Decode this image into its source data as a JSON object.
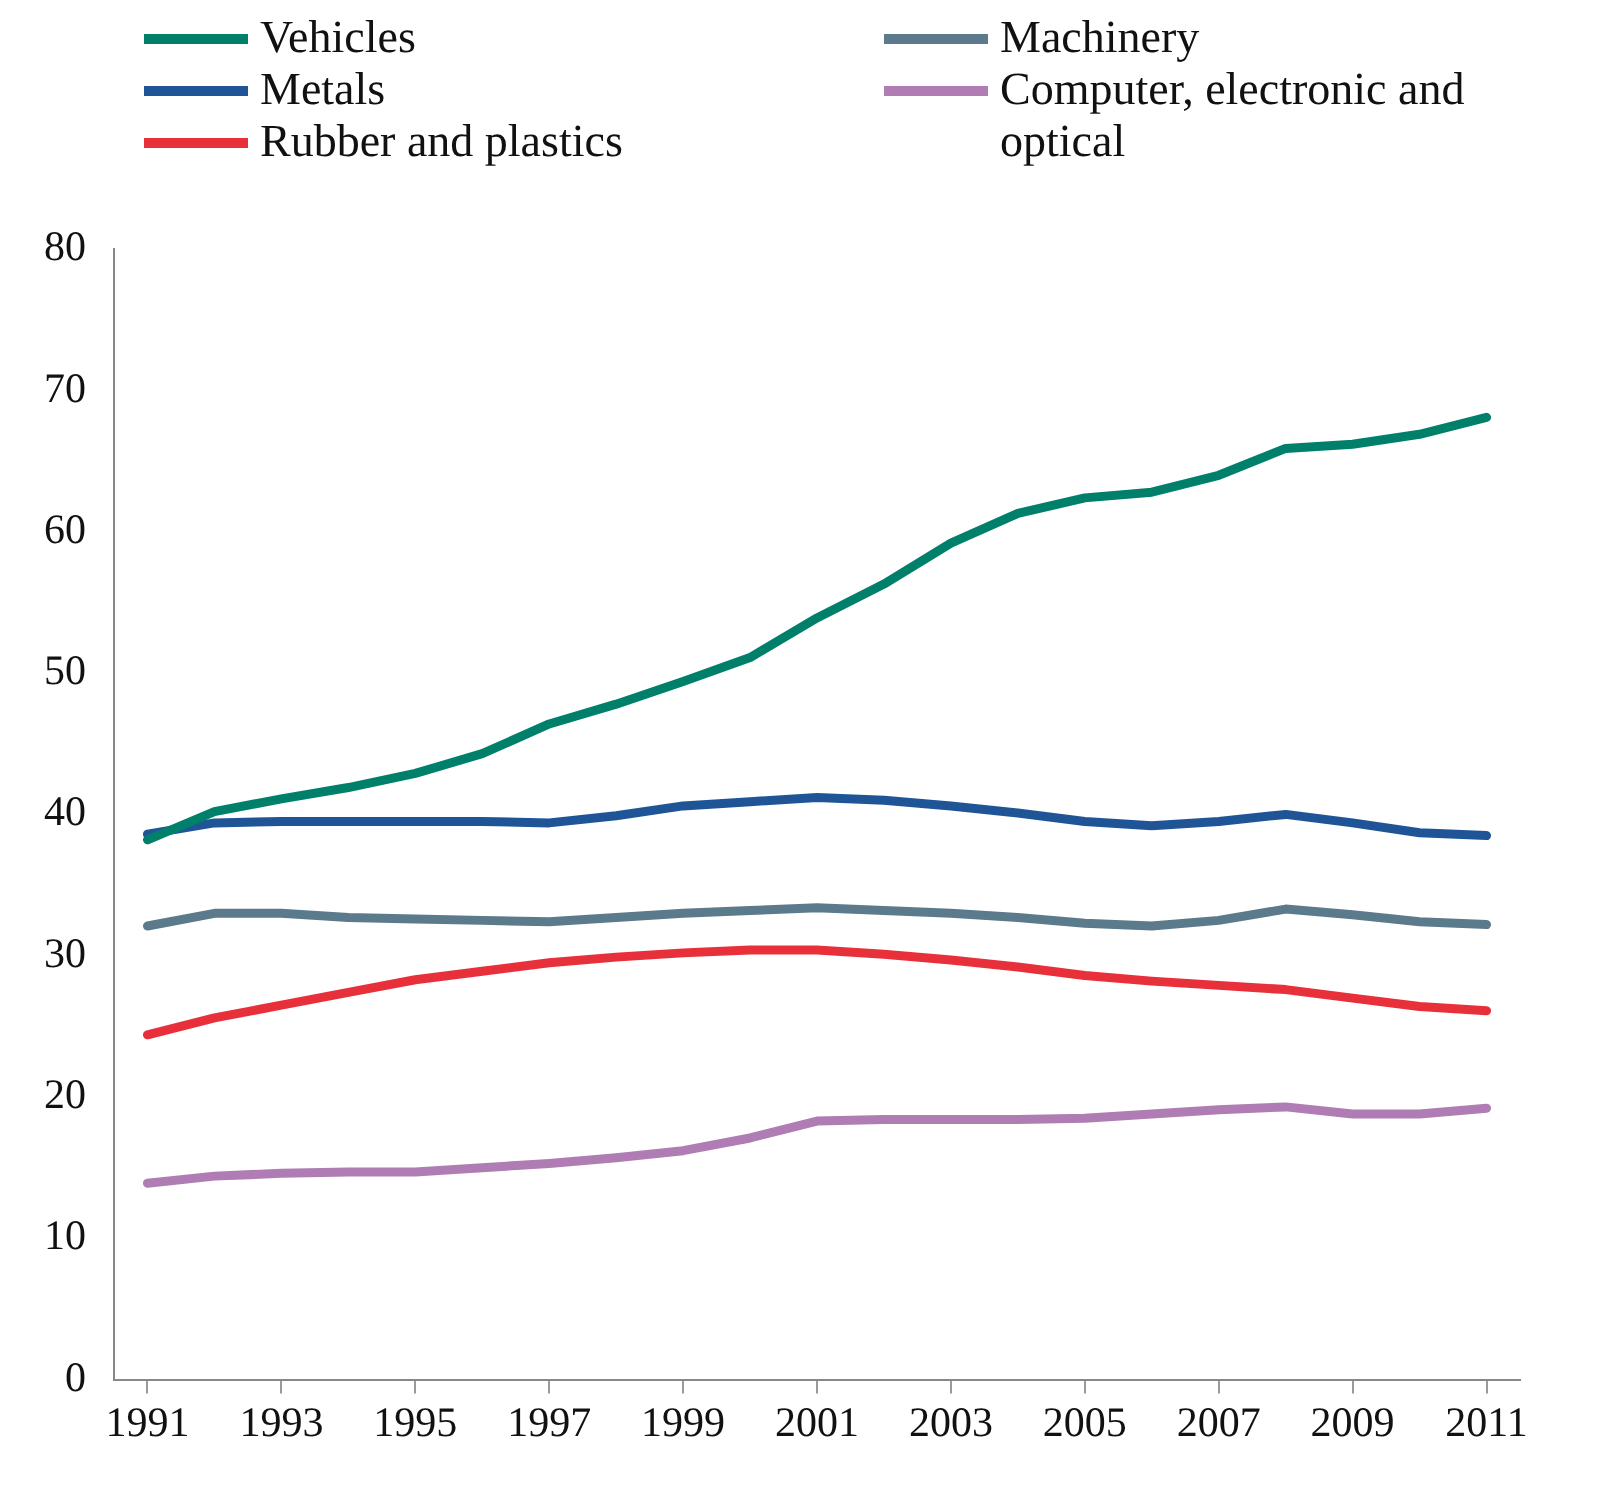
{
  "chart_data": {
    "type": "line",
    "x": [
      1991,
      1992,
      1993,
      1994,
      1995,
      1996,
      1997,
      1998,
      1999,
      2000,
      2001,
      2002,
      2003,
      2004,
      2005,
      2006,
      2007,
      2008,
      2009,
      2010,
      2011
    ],
    "series": [
      {
        "name": "Vehicles",
        "color": "#00806a",
        "values": [
          38.2,
          40.2,
          41.1,
          41.9,
          42.9,
          44.3,
          46.4,
          47.8,
          49.4,
          51.1,
          53.9,
          56.3,
          59.2,
          61.3,
          62.4,
          62.8,
          64.0,
          65.9,
          66.2,
          66.9,
          68.1
        ]
      },
      {
        "name": "Machinery",
        "color": "#5b7a8c",
        "values": [
          32.1,
          33.0,
          33.0,
          32.7,
          32.6,
          32.5,
          32.4,
          32.7,
          33.0,
          33.2,
          33.4,
          33.2,
          33.0,
          32.7,
          32.3,
          32.1,
          32.5,
          33.3,
          32.9,
          32.4,
          32.2
        ]
      },
      {
        "name": "Metals",
        "color": "#1f5597",
        "values": [
          38.6,
          39.4,
          39.5,
          39.5,
          39.5,
          39.5,
          39.4,
          39.9,
          40.6,
          40.9,
          41.2,
          41.0,
          40.6,
          40.1,
          39.5,
          39.2,
          39.5,
          40.0,
          39.4,
          38.7,
          38.5
        ]
      },
      {
        "name": "Computer, electronic and optical",
        "color": "#b07cb4",
        "values": [
          13.9,
          14.4,
          14.6,
          14.7,
          14.7,
          15.0,
          15.3,
          15.7,
          16.2,
          17.1,
          18.3,
          18.4,
          18.4,
          18.4,
          18.5,
          18.8,
          19.1,
          19.3,
          18.8,
          18.8,
          19.2
        ]
      },
      {
        "name": "Rubber and plastics",
        "color": "#e8303a",
        "values": [
          24.4,
          25.6,
          26.5,
          27.4,
          28.3,
          28.9,
          29.5,
          29.9,
          30.2,
          30.4,
          30.4,
          30.1,
          29.7,
          29.2,
          28.6,
          28.2,
          27.9,
          27.6,
          27.0,
          26.4,
          26.1
        ]
      }
    ],
    "xlim": [
      1990.5,
      2011.5
    ],
    "xticks": [
      1991,
      1993,
      1995,
      1997,
      1999,
      2001,
      2003,
      2005,
      2007,
      2009,
      2011
    ],
    "ylim": [
      0,
      80
    ],
    "yticks": [
      0,
      10,
      20,
      30,
      40,
      50,
      60,
      70,
      80
    ],
    "grid": false,
    "legend": "top",
    "marker": "none",
    "line_style": "solid"
  }
}
